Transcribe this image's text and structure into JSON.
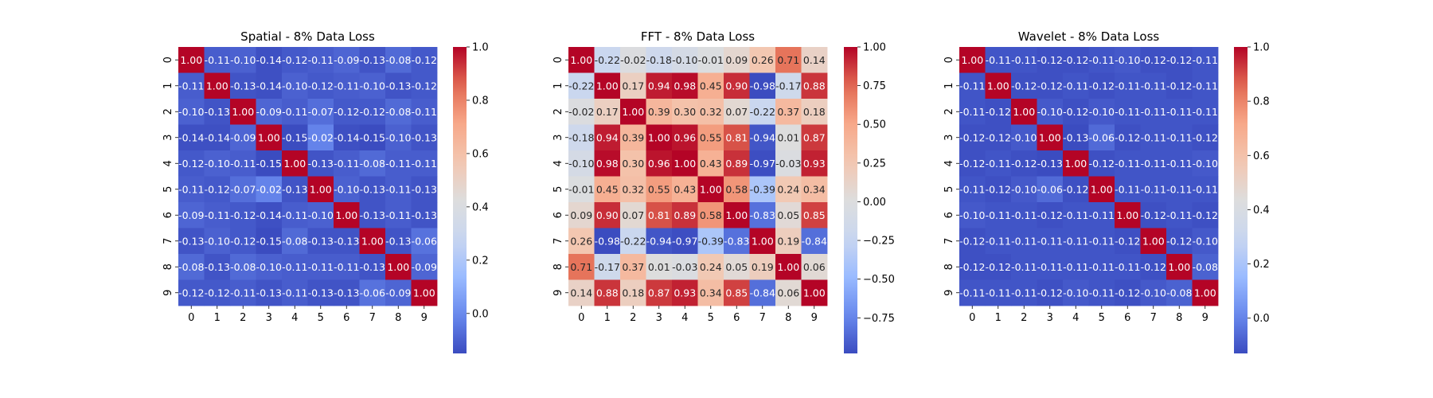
{
  "colormap": {
    "name": "coolwarm",
    "stops": [
      "#3b4cc0",
      "#6889ee",
      "#9abbff",
      "#c9d7f0",
      "#dddddd",
      "#f3c7b1",
      "#f7a889",
      "#e26952",
      "#b40426"
    ]
  },
  "chart_data": [
    {
      "type": "heatmap",
      "title": "Spatial - 8% Data Loss",
      "x_ticks": [
        "0",
        "1",
        "2",
        "3",
        "4",
        "5",
        "6",
        "7",
        "8",
        "9"
      ],
      "y_ticks": [
        "0",
        "1",
        "2",
        "3",
        "4",
        "5",
        "6",
        "7",
        "8",
        "9"
      ],
      "vmin": -0.15,
      "vmax": 1.0,
      "colorbar_ticks": [
        "0.0",
        "0.2",
        "0.4",
        "0.6",
        "0.8",
        "1.0"
      ],
      "matrix": [
        [
          1.0,
          -0.11,
          -0.1,
          -0.14,
          -0.12,
          -0.11,
          -0.09,
          -0.13,
          -0.08,
          -0.12
        ],
        [
          -0.11,
          1.0,
          -0.13,
          -0.14,
          -0.1,
          -0.12,
          -0.11,
          -0.1,
          -0.13,
          -0.12
        ],
        [
          -0.1,
          -0.13,
          1.0,
          -0.09,
          -0.11,
          -0.07,
          -0.12,
          -0.12,
          -0.08,
          -0.11
        ],
        [
          -0.14,
          -0.14,
          -0.09,
          1.0,
          -0.15,
          -0.02,
          -0.14,
          -0.15,
          -0.1,
          -0.13
        ],
        [
          -0.12,
          -0.1,
          -0.11,
          -0.15,
          1.0,
          -0.13,
          -0.11,
          -0.08,
          -0.11,
          -0.11
        ],
        [
          -0.11,
          -0.12,
          -0.07,
          -0.02,
          -0.13,
          1.0,
          -0.1,
          -0.13,
          -0.11,
          -0.13
        ],
        [
          -0.09,
          -0.11,
          -0.12,
          -0.14,
          -0.11,
          -0.1,
          1.0,
          -0.13,
          -0.11,
          -0.13
        ],
        [
          -0.13,
          -0.1,
          -0.12,
          -0.15,
          -0.08,
          -0.13,
          -0.13,
          1.0,
          -0.13,
          -0.06
        ],
        [
          -0.08,
          -0.13,
          -0.08,
          -0.1,
          -0.11,
          -0.11,
          -0.11,
          -0.13,
          1.0,
          -0.09
        ],
        [
          -0.12,
          -0.12,
          -0.11,
          -0.13,
          -0.11,
          -0.13,
          -0.13,
          -0.06,
          -0.09,
          1.0
        ]
      ]
    },
    {
      "type": "heatmap",
      "title": "FFT - 8% Data Loss",
      "x_ticks": [
        "0",
        "1",
        "2",
        "3",
        "4",
        "5",
        "6",
        "7",
        "8",
        "9"
      ],
      "y_ticks": [
        "0",
        "1",
        "2",
        "3",
        "4",
        "5",
        "6",
        "7",
        "8",
        "9"
      ],
      "vmin": -0.98,
      "vmax": 1.0,
      "colorbar_ticks": [
        "−0.75",
        "−0.50",
        "−0.25",
        "0.00",
        "0.25",
        "0.50",
        "0.75",
        "1.00"
      ],
      "matrix": [
        [
          1.0,
          -0.22,
          -0.02,
          -0.18,
          -0.1,
          -0.01,
          0.09,
          0.26,
          0.71,
          0.14
        ],
        [
          -0.22,
          1.0,
          0.17,
          0.94,
          0.98,
          0.45,
          0.9,
          -0.98,
          -0.17,
          0.88
        ],
        [
          -0.02,
          0.17,
          1.0,
          0.39,
          0.3,
          0.32,
          0.07,
          -0.22,
          0.37,
          0.18
        ],
        [
          -0.18,
          0.94,
          0.39,
          1.0,
          0.96,
          0.55,
          0.81,
          -0.94,
          0.01,
          0.87
        ],
        [
          -0.1,
          0.98,
          0.3,
          0.96,
          1.0,
          0.43,
          0.89,
          -0.97,
          -0.03,
          0.93
        ],
        [
          -0.01,
          0.45,
          0.32,
          0.55,
          0.43,
          1.0,
          0.58,
          -0.39,
          0.24,
          0.34
        ],
        [
          0.09,
          0.9,
          0.07,
          0.81,
          0.89,
          0.58,
          1.0,
          -0.83,
          0.05,
          0.85
        ],
        [
          0.26,
          -0.98,
          -0.22,
          -0.94,
          -0.97,
          -0.39,
          -0.83,
          1.0,
          0.19,
          -0.84
        ],
        [
          0.71,
          -0.17,
          0.37,
          0.01,
          -0.03,
          0.24,
          0.05,
          0.19,
          1.0,
          0.06
        ],
        [
          0.14,
          0.88,
          0.18,
          0.87,
          0.93,
          0.34,
          0.85,
          -0.84,
          0.06,
          1.0
        ]
      ]
    },
    {
      "type": "heatmap",
      "title": "Wavelet - 8% Data Loss",
      "x_ticks": [
        "0",
        "1",
        "2",
        "3",
        "4",
        "5",
        "6",
        "7",
        "8",
        "9"
      ],
      "y_ticks": [
        "0",
        "1",
        "2",
        "3",
        "4",
        "5",
        "6",
        "7",
        "8",
        "9"
      ],
      "vmin": -0.13,
      "vmax": 1.0,
      "colorbar_ticks": [
        "0.0",
        "0.2",
        "0.4",
        "0.6",
        "0.8",
        "1.0"
      ],
      "matrix": [
        [
          1.0,
          -0.11,
          -0.11,
          -0.12,
          -0.12,
          -0.11,
          -0.1,
          -0.12,
          -0.12,
          -0.11
        ],
        [
          -0.11,
          1.0,
          -0.12,
          -0.12,
          -0.11,
          -0.12,
          -0.11,
          -0.11,
          -0.12,
          -0.11
        ],
        [
          -0.11,
          -0.12,
          1.0,
          -0.1,
          -0.12,
          -0.1,
          -0.11,
          -0.11,
          -0.11,
          -0.11
        ],
        [
          -0.12,
          -0.12,
          -0.1,
          1.0,
          -0.13,
          -0.06,
          -0.12,
          -0.11,
          -0.11,
          -0.12
        ],
        [
          -0.12,
          -0.11,
          -0.12,
          -0.13,
          1.0,
          -0.12,
          -0.11,
          -0.11,
          -0.11,
          -0.1
        ],
        [
          -0.11,
          -0.12,
          -0.1,
          -0.06,
          -0.12,
          1.0,
          -0.11,
          -0.11,
          -0.11,
          -0.11
        ],
        [
          -0.1,
          -0.11,
          -0.11,
          -0.12,
          -0.11,
          -0.11,
          1.0,
          -0.12,
          -0.11,
          -0.12
        ],
        [
          -0.12,
          -0.11,
          -0.11,
          -0.11,
          -0.11,
          -0.11,
          -0.12,
          1.0,
          -0.12,
          -0.1
        ],
        [
          -0.12,
          -0.12,
          -0.11,
          -0.11,
          -0.11,
          -0.11,
          -0.11,
          -0.12,
          1.0,
          -0.08
        ],
        [
          -0.11,
          -0.11,
          -0.11,
          -0.12,
          -0.1,
          -0.11,
          -0.12,
          -0.1,
          -0.08,
          1.0
        ]
      ]
    }
  ]
}
